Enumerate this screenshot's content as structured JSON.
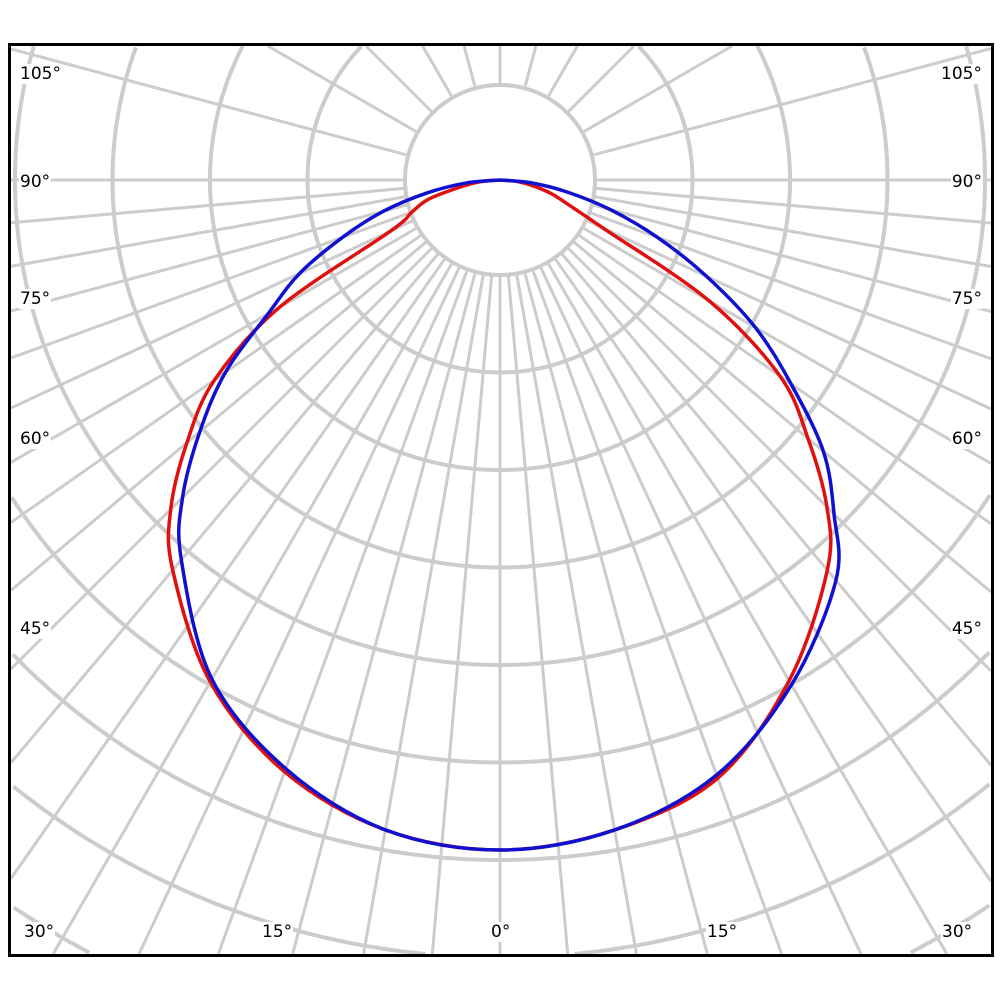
{
  "chart_data": {
    "type": "polar-line",
    "title": "",
    "angle_unit": "deg",
    "zero_direction": "down",
    "angle_labels_left": [
      "105°",
      "90°",
      "75°",
      "60°",
      "45°"
    ],
    "angle_labels_right": [
      "105°",
      "90°",
      "75°",
      "60°",
      "45°"
    ],
    "angle_labels_bottom": [
      "30°",
      "15°",
      "0°",
      "15°",
      "30°"
    ],
    "grid": true,
    "grid_color": "#cccccc",
    "radial_scale": "relative intensity (1.0 = value at 0°), unlabeled",
    "angles": [
      0,
      10,
      20,
      30,
      40,
      45,
      50,
      55,
      60,
      65,
      70,
      75,
      80,
      85,
      90
    ],
    "series": [
      {
        "color": "#e01010",
        "left": [
          1.0,
          0.985,
          0.94,
          0.865,
          0.76,
          0.695,
          0.61,
          0.52,
          0.38,
          0.18,
          0.14,
          0.11,
          0.06,
          0.03,
          0
        ],
        "right": [
          1.0,
          0.985,
          0.95,
          0.863,
          0.76,
          0.69,
          0.6,
          0.51,
          0.36,
          0.17,
          0.11,
          0.08,
          0.05,
          0.025,
          0
        ]
      },
      {
        "color": "#1010d0",
        "left": [
          1.0,
          0.985,
          0.935,
          0.86,
          0.74,
          0.67,
          0.585,
          0.5,
          0.4,
          0.33,
          0.25,
          0.18,
          0.11,
          0.05,
          0
        ],
        "right": [
          1.0,
          0.985,
          0.945,
          0.87,
          0.78,
          0.705,
          0.63,
          0.53,
          0.44,
          0.34,
          0.25,
          0.17,
          0.1,
          0.045,
          0
        ]
      }
    ]
  }
}
